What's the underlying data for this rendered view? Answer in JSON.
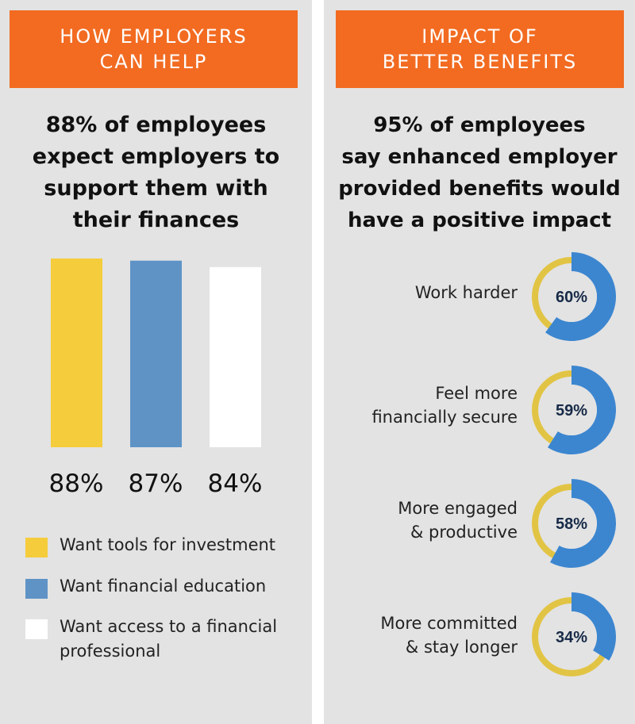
{
  "colors": {
    "background": "#e3e3e3",
    "banner": "#f26b21",
    "banner_text": "#ffffff",
    "yellow": "#f5cc3c",
    "blue": "#5f93c6",
    "white": "#ffffff",
    "donut_yellow": "#e2c445",
    "donut_blue": "#3c86d0",
    "donut_center": "#e3e3e3"
  },
  "left": {
    "banner": {
      "line1": "HOW EMPLOYERS",
      "line2": "CAN HELP"
    },
    "headline": {
      "line1": "88% of employees",
      "line2": "expect employers to",
      "line3": "support them with",
      "line4": "their finances"
    }
  },
  "right": {
    "banner": {
      "line1": "IMPACT OF",
      "line2": "BETTER BENEFITS"
    },
    "headline": {
      "line1": "95% of employees",
      "line2": "say enhanced employer",
      "line3": "provided benefits would",
      "line4": "have a positive impact"
    }
  },
  "chart_data": [
    {
      "type": "bar",
      "categories": [
        "Want tools for investment",
        "Want financial education",
        "Want access to a financial professional"
      ],
      "values": [
        88,
        87,
        84
      ],
      "value_labels": [
        "88%",
        "87%",
        "84%"
      ],
      "colors": [
        "#f5cc3c",
        "#5f93c6",
        "#ffffff"
      ],
      "legend": [
        {
          "label": "Want tools for investment",
          "color": "#f5cc3c"
        },
        {
          "label": "Want financial education",
          "color": "#5f93c6"
        },
        {
          "label_line1": "Want access to a financial",
          "label_line2": "professional",
          "color": "#ffffff"
        }
      ],
      "legend_position": "bottom",
      "grid": false
    },
    {
      "type": "pie",
      "style": "donut",
      "items": [
        {
          "label_line1": "Work harder",
          "label_line2": "",
          "value": 60,
          "display": "60%"
        },
        {
          "label_line1": "Feel more",
          "label_line2": "financially secure",
          "value": 59,
          "display": "59%"
        },
        {
          "label_line1": "More engaged",
          "label_line2": "& productive",
          "value": 58,
          "display": "58%"
        },
        {
          "label_line1": "More committed",
          "label_line2": "& stay longer",
          "value": 34,
          "display": "34%"
        }
      ]
    }
  ]
}
